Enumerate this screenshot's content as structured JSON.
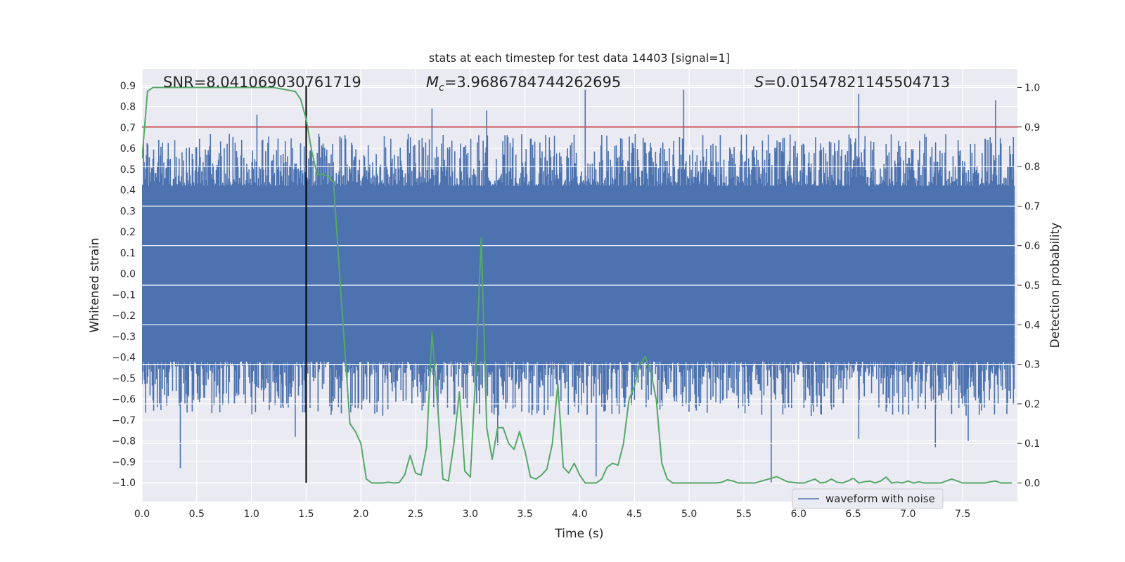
{
  "chart_data": {
    "type": "line",
    "title": "stats at each timestep for test data 14403 [signal=1]",
    "xlabel": "Time (s)",
    "ylabel": "Whitened strain",
    "y2label": "Detection probability",
    "xlim": [
      0.0,
      8.0
    ],
    "ylim": [
      -1.09,
      0.98
    ],
    "y2lim": [
      -0.047,
      1.047
    ],
    "xticks": [
      "0.0",
      "0.5",
      "1.0",
      "1.5",
      "2.0",
      "2.5",
      "3.0",
      "3.5",
      "4.0",
      "4.5",
      "5.0",
      "5.5",
      "6.0",
      "6.5",
      "7.0",
      "7.5"
    ],
    "xtick_values": [
      0.0,
      0.5,
      1.0,
      1.5,
      2.0,
      2.5,
      3.0,
      3.5,
      4.0,
      4.5,
      5.0,
      5.5,
      6.0,
      6.5,
      7.0,
      7.5
    ],
    "yticks": [
      "−1.0",
      "−0.9",
      "−0.8",
      "−0.7",
      "−0.6",
      "−0.5",
      "−0.4",
      "−0.3",
      "−0.2",
      "−0.1",
      "0.0",
      "0.1",
      "0.2",
      "0.3",
      "0.4",
      "0.5",
      "0.6",
      "0.7",
      "0.8",
      "0.9"
    ],
    "ytick_values": [
      -1.0,
      -0.9,
      -0.8,
      -0.7,
      -0.6,
      -0.5,
      -0.4,
      -0.3,
      -0.2,
      -0.1,
      0.0,
      0.1,
      0.2,
      0.3,
      0.4,
      0.5,
      0.6,
      0.7,
      0.8,
      0.9
    ],
    "y2ticks": [
      "0.0",
      "0.1",
      "0.2",
      "0.3",
      "0.4",
      "0.5",
      "0.6",
      "0.7",
      "0.8",
      "0.9",
      "1.0"
    ],
    "y2tick_values": [
      0.0,
      0.1,
      0.2,
      0.3,
      0.4,
      0.5,
      0.6,
      0.7,
      0.8,
      0.9,
      1.0
    ],
    "annotations": {
      "snr": "SNR=8.041069030761719",
      "mc_symbol": "M",
      "mc_sub": "c",
      "mc_value": "=3.9686784744262695",
      "s_symbol": "S",
      "s_value": "=0.01547821145504713"
    },
    "legend": {
      "label": "waveform with noise",
      "location": "lower right"
    },
    "series": [
      {
        "name": "waveform with noise",
        "kind": "noise",
        "color": "#4c72b0",
        "sample_count": 1200,
        "core_range": [
          -0.42,
          0.42
        ],
        "typical_peak": 0.62,
        "max": 0.88,
        "min": -1.0
      },
      {
        "name": "detection probability",
        "axis": "right",
        "color": "#55a868",
        "x": [
          0.0,
          0.05,
          0.1,
          0.2,
          0.3,
          0.4,
          0.5,
          0.6,
          0.7,
          0.8,
          0.9,
          1.0,
          1.1,
          1.2,
          1.3,
          1.4,
          1.45,
          1.5,
          1.55,
          1.6,
          1.65,
          1.7,
          1.75,
          1.8,
          1.85,
          1.9,
          1.95,
          2.0,
          2.05,
          2.1,
          2.15,
          2.2,
          2.25,
          2.3,
          2.35,
          2.4,
          2.45,
          2.5,
          2.55,
          2.6,
          2.65,
          2.7,
          2.75,
          2.8,
          2.85,
          2.9,
          2.95,
          3.0,
          3.05,
          3.1,
          3.15,
          3.2,
          3.25,
          3.3,
          3.35,
          3.4,
          3.45,
          3.5,
          3.55,
          3.6,
          3.65,
          3.7,
          3.75,
          3.8,
          3.85,
          3.9,
          3.95,
          4.0,
          4.05,
          4.1,
          4.15,
          4.2,
          4.25,
          4.3,
          4.35,
          4.4,
          4.45,
          4.5,
          4.55,
          4.6,
          4.65,
          4.7,
          4.75,
          4.8,
          4.85,
          4.9,
          4.95,
          5.0,
          5.05,
          5.1,
          5.15,
          5.2,
          5.25,
          5.3,
          5.35,
          5.4,
          5.45,
          5.5,
          5.6,
          5.7,
          5.8,
          5.9,
          6.0,
          6.05,
          6.1,
          6.15,
          6.2,
          6.25,
          6.3,
          6.35,
          6.4,
          6.45,
          6.5,
          6.55,
          6.6,
          6.65,
          6.7,
          6.75,
          6.8,
          6.85,
          6.9,
          6.95,
          7.0,
          7.05,
          7.1,
          7.15,
          7.2,
          7.25,
          7.3,
          7.35,
          7.4,
          7.45,
          7.5,
          7.55,
          7.6,
          7.65,
          7.7,
          7.75,
          7.8,
          7.85,
          7.9,
          7.95
        ],
        "y": [
          0.82,
          0.99,
          1.0,
          1.0,
          1.0,
          1.0,
          1.0,
          1.0,
          1.0,
          1.0,
          1.0,
          1.0,
          1.0,
          1.0,
          0.995,
          0.99,
          0.97,
          0.92,
          0.84,
          0.78,
          0.78,
          0.775,
          0.76,
          0.55,
          0.35,
          0.15,
          0.13,
          0.1,
          0.01,
          0.0,
          0.0,
          0.0,
          0.002,
          0.0,
          0.001,
          0.02,
          0.07,
          0.025,
          0.02,
          0.09,
          0.38,
          0.2,
          0.01,
          0.005,
          0.1,
          0.23,
          0.03,
          0.015,
          0.28,
          0.62,
          0.14,
          0.06,
          0.14,
          0.14,
          0.1,
          0.085,
          0.13,
          0.08,
          0.015,
          0.01,
          0.02,
          0.035,
          0.1,
          0.25,
          0.04,
          0.025,
          0.05,
          0.02,
          0.0,
          0.0,
          0.0,
          0.01,
          0.04,
          0.05,
          0.045,
          0.1,
          0.21,
          0.245,
          0.3,
          0.32,
          0.28,
          0.21,
          0.05,
          0.01,
          0.0,
          0.0,
          0.0,
          0.0,
          0.0,
          0.0,
          0.0,
          0.0,
          0.0,
          0.002,
          0.008,
          0.005,
          0.0,
          0.0,
          0.0,
          0.008,
          0.016,
          0.003,
          0.0,
          0.0,
          0.005,
          0.01,
          0.0,
          0.002,
          0.01,
          0.002,
          0.0,
          0.005,
          0.012,
          0.0,
          0.003,
          0.005,
          0.0,
          0.005,
          0.015,
          0.0,
          0.002,
          0.0,
          0.005,
          0.0,
          0.003,
          0.0,
          0.0,
          0.0,
          0.0,
          0.005,
          0.01,
          0.005,
          0.0,
          0.0,
          0.0,
          0.0,
          0.0,
          0.003,
          0.005,
          0.0,
          0.0,
          0.0
        ]
      }
    ],
    "reference_lines": {
      "threshold_probability": 0.9,
      "threshold_color": "#c44e52",
      "event_time": 1.5,
      "event_line_y_range": [
        -1.0,
        0.9
      ]
    }
  }
}
